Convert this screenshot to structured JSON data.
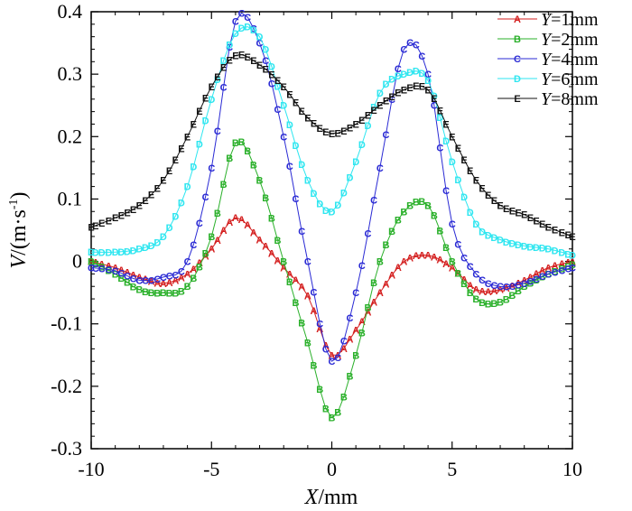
{
  "chart_data": {
    "type": "line",
    "xlabel": "X/mm",
    "ylabel": "V/(m·s⁻¹)",
    "xlim": [
      -10,
      10
    ],
    "ylim": [
      -0.3,
      0.4
    ],
    "xticks": [
      -10,
      -5,
      0,
      5,
      10
    ],
    "yticks": [
      -0.3,
      -0.2,
      -0.1,
      0,
      0.1,
      0.2,
      0.3,
      0.4
    ],
    "xtick_labels": [
      "-10",
      "-5",
      "0",
      "5",
      "10"
    ],
    "ytick_labels": [
      "-0.3",
      "-0.2",
      "-0.1",
      "0",
      "0.1",
      "0.2",
      "0.3",
      "0.4"
    ],
    "legend_position": "top-right",
    "series": [
      {
        "name": "Y=1mm",
        "name_var": "Y",
        "name_rest": "=1mm",
        "color": "#d42020",
        "marker": "A",
        "x": [
          -10,
          -9,
          -8,
          -7,
          -6,
          -5,
          -4,
          -3,
          -2,
          -1,
          0,
          1,
          2,
          3,
          4,
          5,
          6,
          7,
          8,
          9,
          10
        ],
        "y": [
          0.0,
          -0.01,
          -0.025,
          -0.035,
          -0.02,
          0.02,
          0.07,
          0.035,
          -0.01,
          -0.055,
          -0.15,
          -0.11,
          -0.05,
          0.0,
          0.01,
          -0.01,
          -0.045,
          -0.045,
          -0.03,
          -0.01,
          0.0
        ]
      },
      {
        "name": "Y=2mm",
        "name_var": "Y",
        "name_rest": "=2mm",
        "color": "#2ab02a",
        "marker": "B",
        "x": [
          -10,
          -9,
          -8,
          -7,
          -6,
          -5,
          -4,
          -3,
          -2,
          -1,
          0,
          1,
          2,
          3,
          4,
          5,
          6,
          7,
          8,
          9,
          10
        ],
        "y": [
          0.0,
          -0.02,
          -0.045,
          -0.05,
          -0.04,
          0.04,
          0.19,
          0.13,
          0.0,
          -0.13,
          -0.25,
          -0.15,
          0.0,
          0.08,
          0.09,
          0.0,
          -0.06,
          -0.065,
          -0.04,
          -0.02,
          -0.005
        ]
      },
      {
        "name": "Y=4mm",
        "name_var": "Y",
        "name_rest": "=4mm",
        "color": "#2a2ad4",
        "marker": "C",
        "x": [
          -10,
          -9,
          -8,
          -7,
          -6,
          -5,
          -4,
          -3,
          -2,
          -1,
          0,
          1,
          2,
          3,
          4,
          5,
          6,
          7,
          8,
          9,
          10
        ],
        "y": [
          -0.01,
          -0.015,
          -0.03,
          -0.025,
          0.0,
          0.15,
          0.385,
          0.35,
          0.2,
          0.0,
          -0.16,
          -0.05,
          0.15,
          0.34,
          0.3,
          0.06,
          -0.02,
          -0.04,
          -0.035,
          -0.02,
          -0.01
        ]
      },
      {
        "name": "Y=6mm",
        "name_var": "Y",
        "name_rest": "=6mm",
        "color": "#2ee6f0",
        "marker": "D",
        "x": [
          -10,
          -9,
          -8,
          -7,
          -6,
          -5,
          -4,
          -3,
          -2,
          -1,
          0,
          1,
          2,
          3,
          4,
          5,
          6,
          7,
          8,
          9,
          10
        ],
        "y": [
          0.015,
          0.015,
          0.02,
          0.04,
          0.12,
          0.26,
          0.365,
          0.36,
          0.25,
          0.13,
          0.08,
          0.16,
          0.27,
          0.3,
          0.29,
          0.16,
          0.06,
          0.035,
          0.025,
          0.02,
          0.01
        ]
      },
      {
        "name": "Y=8mm",
        "name_var": "Y",
        "name_rest": "=8mm",
        "color": "#111111",
        "marker": "E",
        "x": [
          -10,
          -9,
          -8,
          -7,
          -6,
          -5,
          -4,
          -3,
          -2,
          -1,
          0,
          1,
          2,
          3,
          4,
          5,
          6,
          7,
          8,
          9,
          10
        ],
        "y": [
          0.055,
          0.07,
          0.09,
          0.13,
          0.2,
          0.28,
          0.33,
          0.315,
          0.28,
          0.23,
          0.205,
          0.22,
          0.25,
          0.275,
          0.275,
          0.2,
          0.13,
          0.09,
          0.075,
          0.055,
          0.04
        ]
      }
    ]
  }
}
